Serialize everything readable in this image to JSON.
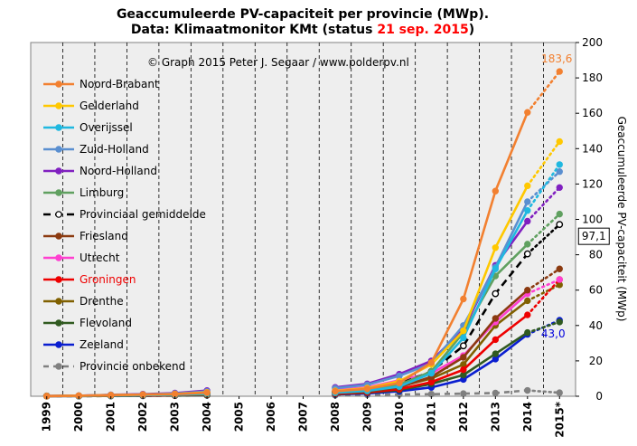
{
  "title_line1": "Geaccumuleerde PV-capaciteit per provincie (MWp).",
  "title_line2_prefix": "Data: Klimaatmonitor KMt (status ",
  "title_line2_date": "21 sep. 2015",
  "title_line2_suffix": ")",
  "copyright": "© Graph  2015  Peter  J.  Segaar  /  www.polderpv.nl",
  "chart_data": {
    "type": "line",
    "ylabel": "Geaccumuleerde  PV-capaciteit  (MWp)",
    "ylim": [
      0,
      200
    ],
    "yticks": [
      0,
      20,
      40,
      60,
      80,
      100,
      120,
      140,
      160,
      180,
      200
    ],
    "categories": [
      "1999",
      "2000",
      "2001",
      "2002",
      "2003",
      "2004",
      "2005",
      "2006",
      "2007",
      "2008",
      "2009",
      "2010",
      "2011",
      "2012",
      "2013",
      "2014",
      "2015*"
    ],
    "grid": true,
    "legend_position": "top-left",
    "annotations": [
      {
        "text": "183,6",
        "series": "Noord-Brabant",
        "color": "#f28030"
      },
      {
        "text": "97,1",
        "series": "Provinciaal gemiddelde",
        "color": "#000000",
        "boxed": true
      },
      {
        "text": "43,0",
        "series": "Zeeland",
        "color": "#0000dd"
      }
    ],
    "series": [
      {
        "name": "Noord-Brabant",
        "color": "#f28030",
        "dash": "none",
        "values": [
          0.1,
          0.3,
          0.6,
          0.9,
          1.2,
          2.0,
          null,
          null,
          null,
          2.8,
          4.2,
          7.5,
          19.0,
          55.0,
          116.0,
          160.5,
          183.6
        ]
      },
      {
        "name": "Gelderland",
        "color": "#ffc800",
        "dash": "none",
        "values": [
          0.1,
          0.3,
          0.6,
          0.9,
          1.3,
          2.2,
          null,
          null,
          null,
          3.0,
          4.6,
          8.5,
          18.0,
          37.0,
          84.0,
          119.0,
          144.0
        ]
      },
      {
        "name": "Overijssel",
        "color": "#20b8e0",
        "dash": "none",
        "values": [
          0.1,
          0.2,
          0.4,
          0.6,
          0.9,
          1.5,
          null,
          null,
          null,
          2.0,
          3.0,
          5.5,
          13.0,
          33.0,
          72.0,
          105.0,
          131.0
        ]
      },
      {
        "name": "Zuid-Holland",
        "color": "#5a8fd0",
        "dash": "none",
        "values": [
          0.1,
          0.3,
          0.7,
          1.0,
          1.5,
          2.7,
          null,
          null,
          null,
          4.5,
          6.5,
          11.5,
          18.5,
          40.0,
          73.0,
          110.0,
          127.0
        ]
      },
      {
        "name": "Noord-Holland",
        "color": "#8020c0",
        "dash": "none",
        "values": [
          0.1,
          0.3,
          0.8,
          1.2,
          1.8,
          3.2,
          null,
          null,
          null,
          5.0,
          7.0,
          12.5,
          20.0,
          38.0,
          74.0,
          99.0,
          118.0
        ]
      },
      {
        "name": "Limburg",
        "color": "#60a060",
        "dash": "none",
        "values": [
          0.1,
          0.2,
          0.4,
          0.6,
          0.8,
          1.2,
          null,
          null,
          null,
          2.0,
          3.2,
          6.5,
          14.0,
          36.0,
          68.0,
          86.0,
          103.0
        ]
      },
      {
        "name": "Provinciaal gemiddelde",
        "color": "#000000",
        "dash": "8,5",
        "hollow": true,
        "values": [
          0.1,
          0.2,
          0.5,
          0.7,
          1.0,
          1.7,
          null,
          null,
          null,
          2.5,
          3.7,
          7.0,
          14.0,
          28.5,
          58.0,
          80.5,
          97.1
        ]
      },
      {
        "name": "Friesland",
        "color": "#8b3a10",
        "dash": "none",
        "values": [
          0.1,
          0.2,
          0.3,
          0.5,
          0.7,
          1.1,
          null,
          null,
          null,
          1.8,
          2.6,
          5.0,
          11.0,
          22.0,
          44.0,
          60.0,
          72.0
        ]
      },
      {
        "name": "Utrecht",
        "color": "#ff40d0",
        "dash": "none",
        "values": [
          0.1,
          0.3,
          0.6,
          0.9,
          1.3,
          2.3,
          null,
          null,
          null,
          3.5,
          5.0,
          9.0,
          13.0,
          23.0,
          42.0,
          58.0,
          66.0
        ]
      },
      {
        "name": "Groningen",
        "color": "#ee0000",
        "dash": "none",
        "label_color": "#ee0000",
        "values": [
          0.1,
          0.2,
          0.3,
          0.4,
          0.6,
          0.9,
          null,
          null,
          null,
          1.4,
          2.2,
          4.0,
          8.0,
          15.0,
          32.0,
          46.0,
          66.0
        ]
      },
      {
        "name": "Drenthe",
        "color": "#806000",
        "dash": "none",
        "values": [
          0.1,
          0.2,
          0.3,
          0.4,
          0.6,
          1.0,
          null,
          null,
          null,
          1.8,
          2.8,
          5.5,
          10.0,
          18.0,
          40.0,
          54.0,
          63.0
        ]
      },
      {
        "name": "Flevoland",
        "color": "#305a20",
        "dash": "none",
        "values": [
          0.1,
          0.1,
          0.2,
          0.3,
          0.4,
          0.6,
          null,
          null,
          null,
          1.2,
          2.0,
          3.5,
          7.0,
          12.0,
          24.0,
          36.0,
          42.0
        ]
      },
      {
        "name": "Zeeland",
        "color": "#0a1ed0",
        "dash": "none",
        "values": [
          0.1,
          0.1,
          0.2,
          0.3,
          0.4,
          0.6,
          null,
          null,
          null,
          1.0,
          1.6,
          2.8,
          5.0,
          9.5,
          21.0,
          35.0,
          43.0
        ]
      },
      {
        "name": "Provincie onbekend",
        "color": "#808080",
        "dash": "6,5",
        "values": [
          0.0,
          0.0,
          0.1,
          0.2,
          0.3,
          0.5,
          null,
          null,
          null,
          0.6,
          0.8,
          1.0,
          1.2,
          1.5,
          1.8,
          3.3,
          2.0
        ]
      }
    ]
  }
}
